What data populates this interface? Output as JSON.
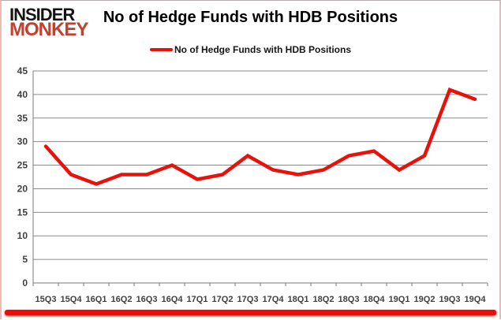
{
  "logo": {
    "line1": "INSIDER",
    "line2": "MONKEY",
    "line1_color": "#141414",
    "line2_color": "#c2402d"
  },
  "header": {
    "title": "No of Hedge Funds with HDB Positions"
  },
  "legend": {
    "label": "No of Hedge Funds with HDB Positions"
  },
  "frame": {
    "bottom_bar_color": "#e90f06",
    "border_side_color": "#eeb9b1"
  },
  "chart_data": {
    "type": "line",
    "title": "No of Hedge Funds with HDB Positions",
    "categories": [
      "15Q3",
      "15Q4",
      "16Q1",
      "16Q2",
      "16Q3",
      "16Q4",
      "17Q1",
      "17Q2",
      "17Q3",
      "17Q4",
      "18Q1",
      "18Q2",
      "18Q3",
      "18Q4",
      "19Q1",
      "19Q2",
      "19Q3",
      "19Q4"
    ],
    "series": [
      {
        "name": "No of Hedge Funds with HDB Positions",
        "color": "#e8120b",
        "values": [
          29,
          23,
          21,
          23,
          23,
          25,
          22,
          23,
          27,
          24,
          23,
          24,
          27,
          28,
          24,
          27,
          41,
          39
        ]
      }
    ],
    "xlabel": "",
    "ylabel": "",
    "ylim": [
      0,
      45
    ],
    "yticks": [
      0,
      5,
      10,
      15,
      20,
      25,
      30,
      35,
      40,
      45
    ],
    "grid": true,
    "legend_position": "top-center",
    "gridline_color": "#8a8a8a",
    "axis_color": "#7a7a7a",
    "tick_label_color": "#3f3f3f"
  }
}
